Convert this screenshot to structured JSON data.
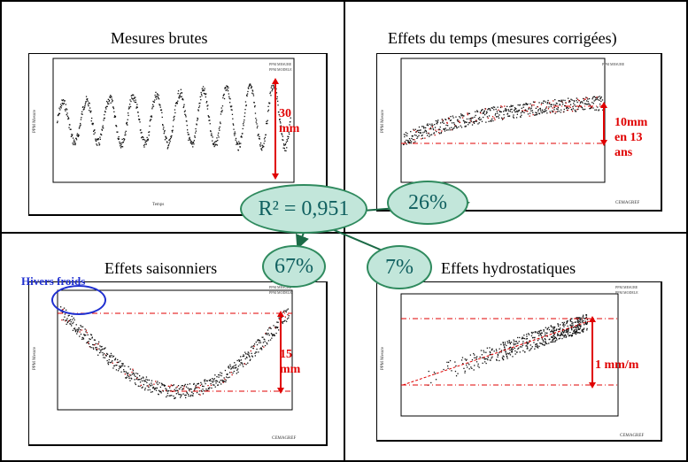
{
  "panels": {
    "raw": {
      "title": "Mesures brutes",
      "annotation": [
        "30",
        "mm"
      ],
      "legend": [
        "PPM MESURE",
        "PPM MODELE"
      ]
    },
    "time": {
      "title": "Effets du temps (mesures corrigées)",
      "annotation": [
        "10mm",
        "en 13",
        "ans"
      ],
      "legend": [
        "PPM MESURE"
      ]
    },
    "seasonal": {
      "title": "Effets saisonniers",
      "annotation": [
        "15",
        "mm"
      ],
      "label": "Hivers froids",
      "legend": [
        "PPM MESURE",
        "PPM MODELE"
      ]
    },
    "hydro": {
      "title": "Effets hydrostatiques",
      "annotation": [
        "1 mm/m"
      ],
      "legend": [
        "PPM MESURE",
        "PPM MODELE"
      ]
    }
  },
  "center": {
    "r2": "R² = 0,951",
    "pct_time": "26%",
    "pct_seasonal": "67%",
    "pct_hydro": "7%"
  },
  "logo_text": "CEMAGREF",
  "colors": {
    "accent_red": "#e00000",
    "bubble_fill": "#c2e6da",
    "bubble_text": "#106060",
    "arrow": "#1b6a46",
    "hivers_blue": "#1f2fd0"
  }
}
